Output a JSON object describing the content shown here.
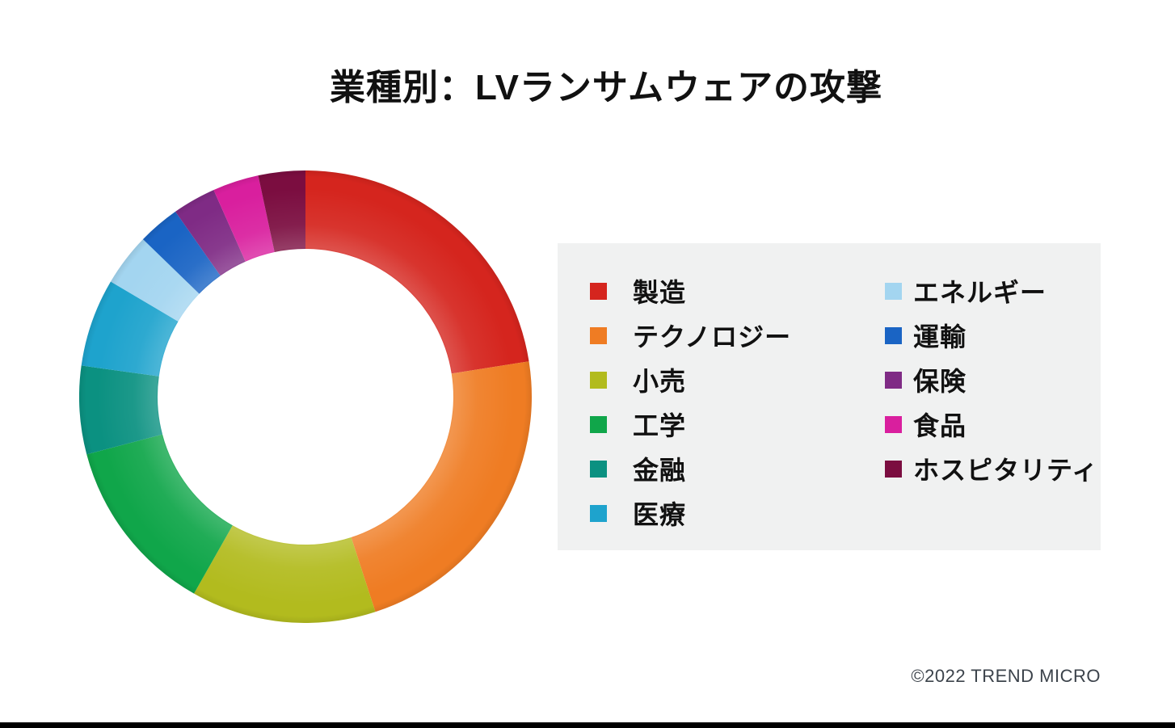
{
  "title": "業種別：LVランサムウェアの攻撃",
  "copyright": "©2022 TREND MICRO",
  "chart_data": {
    "type": "pie",
    "variant": "donut",
    "title": "業種別：LVランサムウェアの攻撃",
    "direction": "clockwise",
    "start_angle_deg": 0,
    "hole_ratio": 0.65,
    "legend_position": "right",
    "unit": "percent",
    "series": [
      {
        "name": "製造",
        "value": 22.5,
        "color": "#d5251e"
      },
      {
        "name": "テクノロジー",
        "value": 22.5,
        "color": "#ef7c23"
      },
      {
        "name": "小売",
        "value": 13.2,
        "color": "#b2bb1e"
      },
      {
        "name": "工学",
        "value": 12.7,
        "color": "#10a64a"
      },
      {
        "name": "金融",
        "value": 6.3,
        "color": "#0b9181"
      },
      {
        "name": "医療",
        "value": 6.3,
        "color": "#1ea3cd"
      },
      {
        "name": "エネルギー",
        "value": 3.75,
        "color": "#a3d5f0"
      },
      {
        "name": "運輸",
        "value": 3.0,
        "color": "#1a64c4"
      },
      {
        "name": "保険",
        "value": 3.1,
        "color": "#7f2b85"
      },
      {
        "name": "食品",
        "value": 3.3,
        "color": "#d91f9e"
      },
      {
        "name": "ホスピタリティ",
        "value": 3.35,
        "color": "#7b0d40"
      }
    ]
  },
  "legend": {
    "background": "#f0f1f1",
    "column_split": 6
  }
}
